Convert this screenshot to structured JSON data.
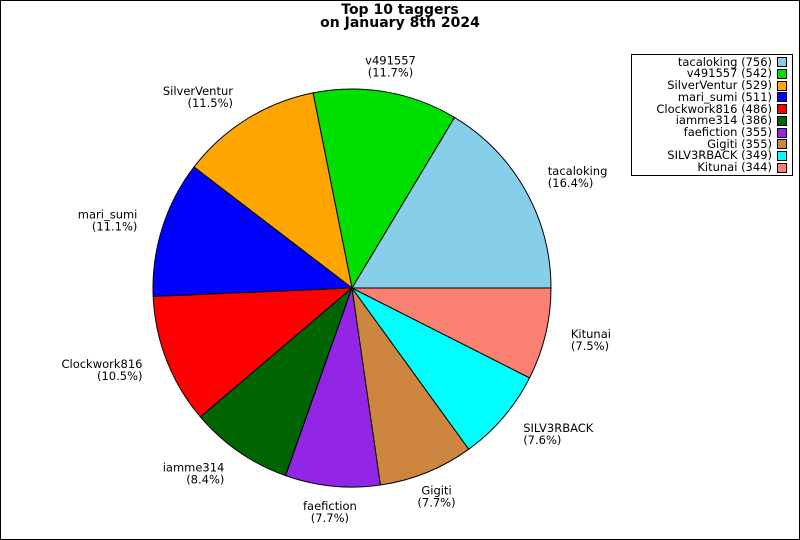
{
  "title": {
    "line1": "Top 10 taggers",
    "line2": "on January 8th 2024"
  },
  "chart_data": {
    "type": "pie",
    "title": "Top 10 taggers on January 8th 2024",
    "start_angle_deg": 0,
    "direction": "counterclockwise",
    "slice_border_color": "#000000",
    "legend_position": "upper right",
    "legend_format": "label (count)",
    "slice_label_format": "label (pct%)",
    "series": [
      {
        "label": "tacaloking",
        "count": 756,
        "pct": "16.4",
        "color": "#87CEEB"
      },
      {
        "label": "v491557",
        "count": 542,
        "pct": "11.7",
        "color": "#00E000"
      },
      {
        "label": "SilverVentur",
        "count": 529,
        "pct": "11.5",
        "color": "#FFA500"
      },
      {
        "label": "mari_sumi",
        "count": 511,
        "pct": "11.1",
        "color": "#0000FF"
      },
      {
        "label": "Clockwork816",
        "count": 486,
        "pct": "10.5",
        "color": "#FF0000"
      },
      {
        "label": "iamme314",
        "count": 386,
        "pct": "8.4",
        "color": "#006400"
      },
      {
        "label": "faefiction",
        "count": 355,
        "pct": "7.7",
        "color": "#9326E6"
      },
      {
        "label": "Gigiti",
        "count": 355,
        "pct": "7.7",
        "color": "#CD853F"
      },
      {
        "label": "SILV3RBACK",
        "count": 349,
        "pct": "7.6",
        "color": "#00FFFF"
      },
      {
        "label": "Kitunai",
        "count": 344,
        "pct": "7.5",
        "color": "#FA8072"
      }
    ]
  }
}
